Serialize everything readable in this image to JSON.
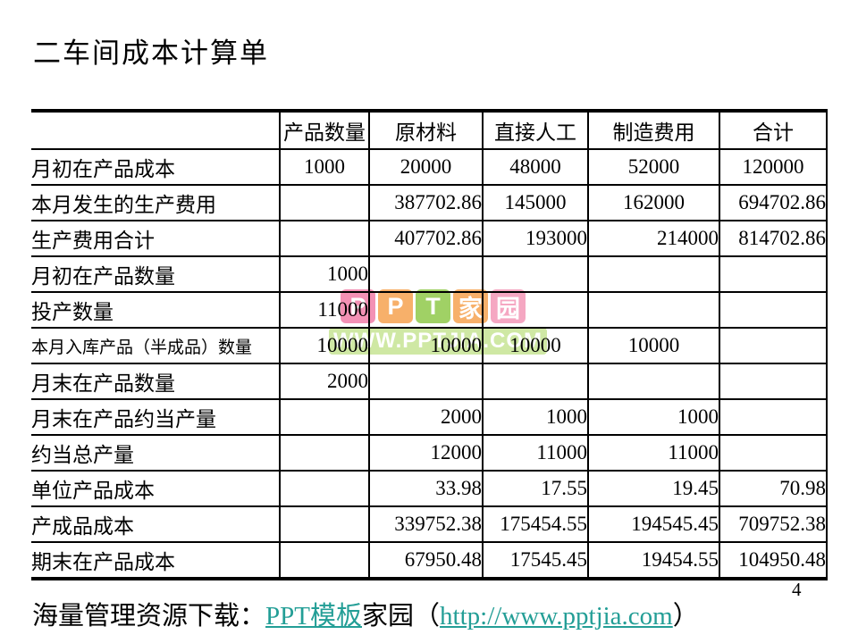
{
  "page": {
    "title": "二车间成本计算单",
    "page_number": "4"
  },
  "footer": {
    "prefix": "海量管理资源下载：",
    "link_template": "PPT模板",
    "home_text": "家园",
    "paren_open": "（",
    "link_url": "http://www.pptjia.com",
    "paren_close": "）",
    "link_color": "#239E96"
  },
  "watermark": {
    "blocks": [
      {
        "char": "P",
        "color": "#F391B5"
      },
      {
        "char": "P",
        "color": "#F7B06A"
      },
      {
        "char": "T",
        "color": "#A0D165"
      },
      {
        "char": "家",
        "color": "#F7B06A"
      },
      {
        "char": "园",
        "color": "#F5A7C2"
      }
    ],
    "url_text": "WWW.PPTJIA.COM",
    "url_bg_color": "#CFE8A4"
  },
  "table": {
    "columns": [
      "",
      "产品数量",
      "原材料",
      "直接人工",
      "制造费用",
      "合计"
    ],
    "rows": [
      {
        "label": "月初在产品成本",
        "cells": [
          {
            "text": "1000",
            "align": "center"
          },
          {
            "text": "20000",
            "align": "center"
          },
          {
            "text": "48000",
            "align": "center"
          },
          {
            "text": "52000",
            "align": "center"
          },
          {
            "text": "120000",
            "align": "center"
          }
        ]
      },
      {
        "label": "本月发生的生产费用",
        "cells": [
          {
            "text": "",
            "align": "right"
          },
          {
            "text": "387702.86",
            "align": "right"
          },
          {
            "text": "145000",
            "align": "center"
          },
          {
            "text": "162000",
            "align": "center"
          },
          {
            "text": "694702.86",
            "align": "right"
          }
        ]
      },
      {
        "label": "生产费用合计",
        "cells": [
          {
            "text": "",
            "align": "right"
          },
          {
            "text": "407702.86",
            "align": "right"
          },
          {
            "text": "193000",
            "align": "right"
          },
          {
            "text": "214000",
            "align": "right"
          },
          {
            "text": "814702.86",
            "align": "right"
          }
        ]
      },
      {
        "label": "月初在产品数量",
        "cells": [
          {
            "text": "1000",
            "align": "right"
          },
          {
            "text": "",
            "align": "right"
          },
          {
            "text": "",
            "align": "right"
          },
          {
            "text": "",
            "align": "right"
          },
          {
            "text": "",
            "align": "right"
          }
        ]
      },
      {
        "label": "投产数量",
        "cells": [
          {
            "text": "11000",
            "align": "right"
          },
          {
            "text": "",
            "align": "right"
          },
          {
            "text": "",
            "align": "right"
          },
          {
            "text": "",
            "align": "right"
          },
          {
            "text": "",
            "align": "right"
          }
        ]
      },
      {
        "label": "本月入库产品（半成品）数量",
        "small": true,
        "cells": [
          {
            "text": "10000",
            "align": "right"
          },
          {
            "text": "10000",
            "align": "right"
          },
          {
            "text": "10000",
            "align": "center"
          },
          {
            "text": "10000",
            "align": "center"
          },
          {
            "text": "",
            "align": "right"
          }
        ]
      },
      {
        "label": "月末在产品数量",
        "cells": [
          {
            "text": "2000",
            "align": "right"
          },
          {
            "text": "",
            "align": "right"
          },
          {
            "text": "",
            "align": "right"
          },
          {
            "text": "",
            "align": "right"
          },
          {
            "text": "",
            "align": "right"
          }
        ]
      },
      {
        "label": "月末在产品约当产量",
        "cells": [
          {
            "text": "",
            "align": "right"
          },
          {
            "text": "2000",
            "align": "right"
          },
          {
            "text": "1000",
            "align": "right"
          },
          {
            "text": "1000",
            "align": "right"
          },
          {
            "text": "",
            "align": "right"
          }
        ]
      },
      {
        "label": "约当总产量",
        "cells": [
          {
            "text": "",
            "align": "right"
          },
          {
            "text": "12000",
            "align": "right"
          },
          {
            "text": "11000",
            "align": "right"
          },
          {
            "text": "11000",
            "align": "right"
          },
          {
            "text": "",
            "align": "right"
          }
        ]
      },
      {
        "label": "单位产品成本",
        "cells": [
          {
            "text": "",
            "align": "right"
          },
          {
            "text": "33.98",
            "align": "right"
          },
          {
            "text": "17.55",
            "align": "right"
          },
          {
            "text": "19.45",
            "align": "right"
          },
          {
            "text": "70.98",
            "align": "right"
          }
        ]
      },
      {
        "label": "产成品成本",
        "cells": [
          {
            "text": "",
            "align": "right"
          },
          {
            "text": "339752.38",
            "align": "right"
          },
          {
            "text": "175454.55",
            "align": "right"
          },
          {
            "text": "194545.45",
            "align": "right"
          },
          {
            "text": "709752.38",
            "align": "right"
          }
        ]
      },
      {
        "label": "期末在产品成本",
        "cells": [
          {
            "text": "",
            "align": "right"
          },
          {
            "text": "67950.48",
            "align": "right"
          },
          {
            "text": "17545.45",
            "align": "right"
          },
          {
            "text": "19454.55",
            "align": "right"
          },
          {
            "text": "104950.48",
            "align": "right"
          }
        ]
      }
    ]
  }
}
